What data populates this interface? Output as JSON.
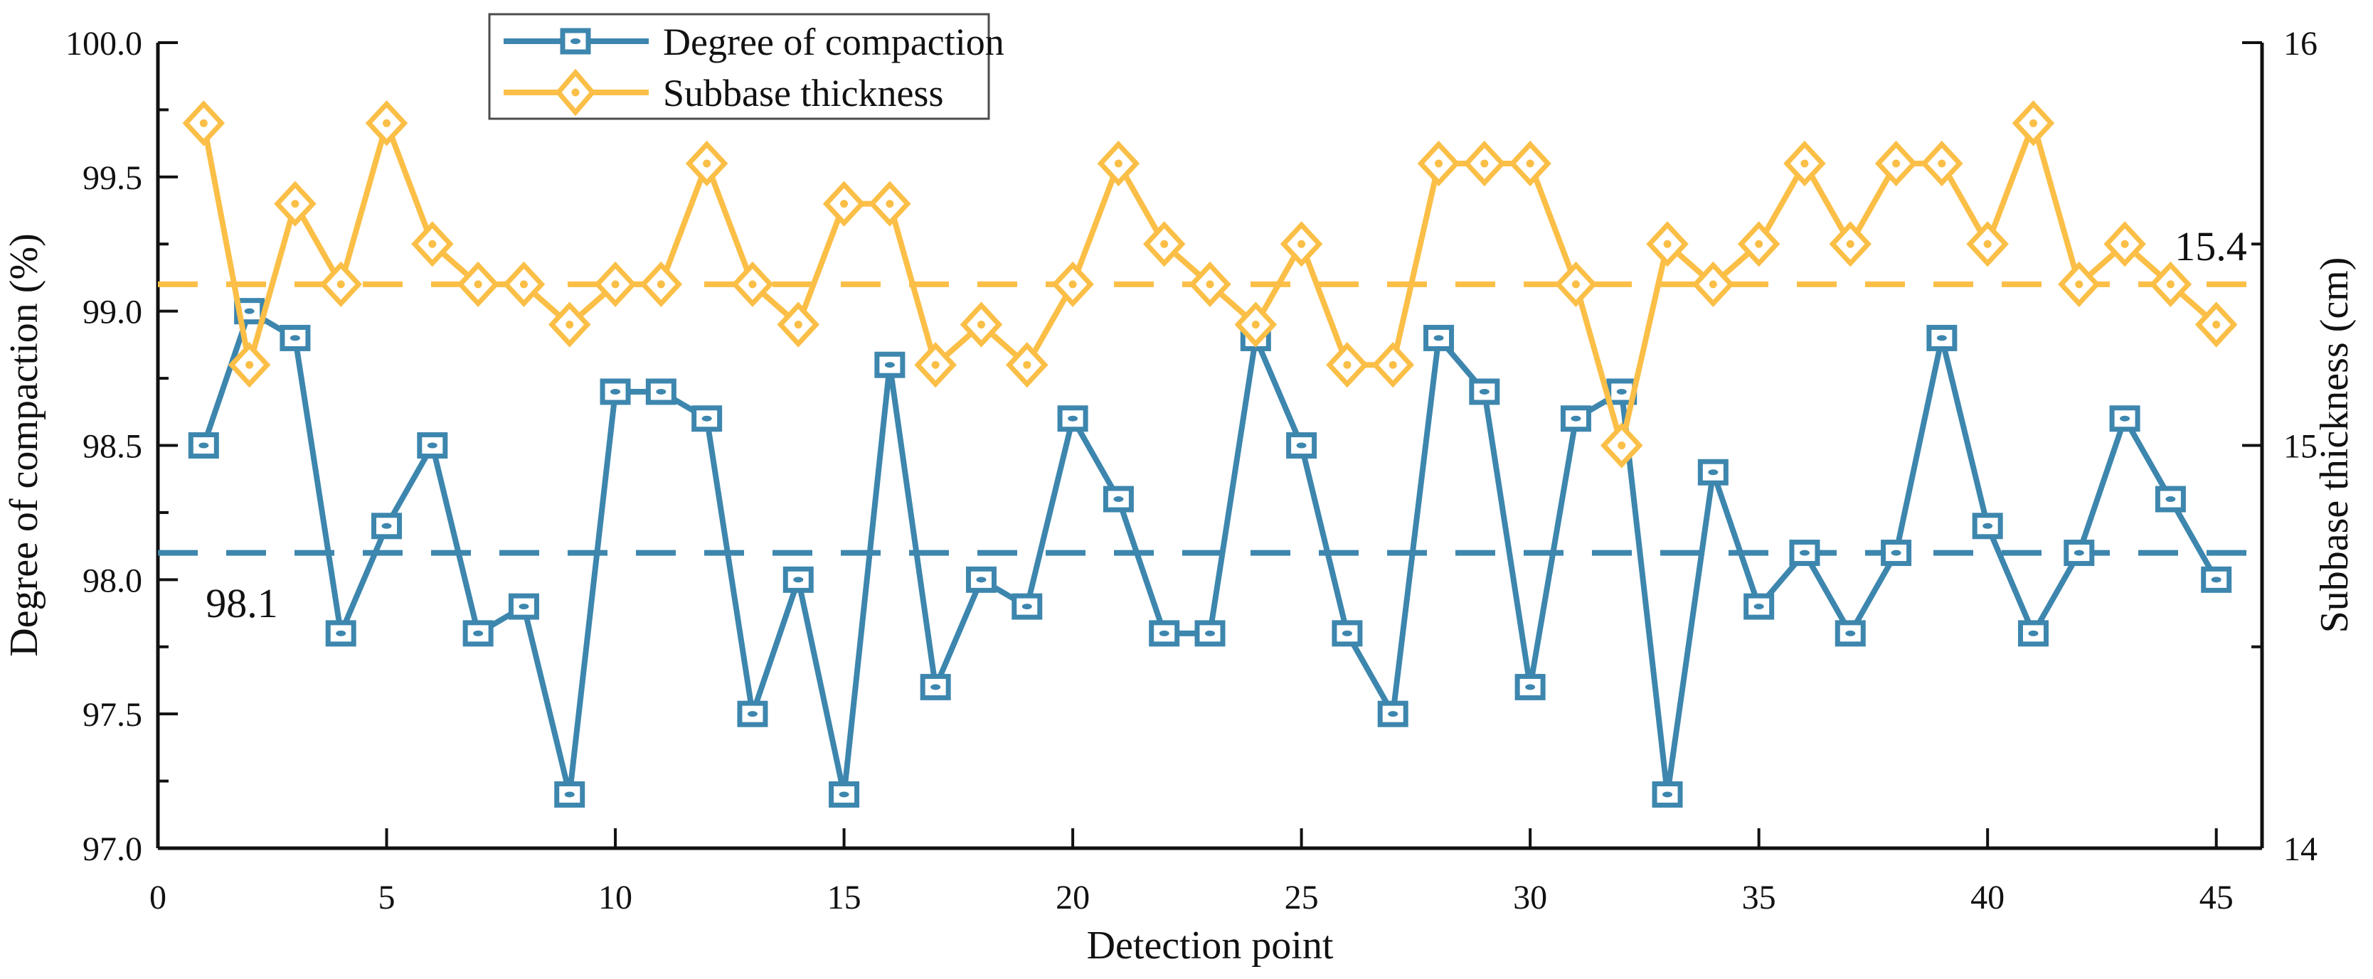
{
  "chart_data": {
    "type": "line",
    "title": "",
    "xlabel": "Detection point",
    "ylabel_left": "Degree of compaction (%)",
    "ylabel_right": "Subbase thickness (cm)",
    "x": [
      1,
      2,
      3,
      4,
      5,
      6,
      7,
      8,
      9,
      10,
      11,
      12,
      13,
      14,
      15,
      16,
      17,
      18,
      19,
      20,
      21,
      22,
      23,
      24,
      25,
      26,
      27,
      28,
      29,
      30,
      31,
      32,
      33,
      34,
      35,
      36,
      37,
      38,
      39,
      40,
      41,
      42,
      43,
      44,
      45
    ],
    "series": [
      {
        "name": "Degree of compaction",
        "axis": "left",
        "marker": "square",
        "color": "#3d86ae",
        "values": [
          98.5,
          99.0,
          98.9,
          97.8,
          98.2,
          98.5,
          97.8,
          97.9,
          97.2,
          98.7,
          98.7,
          98.6,
          97.5,
          98.0,
          97.2,
          98.8,
          97.6,
          98.0,
          97.9,
          98.6,
          98.3,
          97.8,
          97.8,
          98.9,
          98.5,
          97.8,
          97.5,
          98.9,
          98.7,
          97.6,
          98.6,
          98.7,
          97.2,
          98.4,
          97.9,
          98.1,
          97.8,
          98.1,
          98.9,
          98.2,
          97.8,
          98.1,
          98.6,
          98.3,
          98.0
        ]
      },
      {
        "name": "Subbase thickness",
        "axis": "right",
        "marker": "diamond",
        "color": "#fbbf47",
        "values": [
          15.8,
          15.2,
          15.6,
          15.4,
          15.8,
          15.5,
          15.4,
          15.4,
          15.3,
          15.4,
          15.4,
          15.7,
          15.4,
          15.3,
          15.6,
          15.6,
          15.2,
          15.3,
          15.2,
          15.4,
          15.7,
          15.5,
          15.4,
          15.3,
          15.5,
          15.2,
          15.2,
          15.7,
          15.7,
          15.7,
          15.4,
          15.0,
          15.5,
          15.4,
          15.5,
          15.7,
          15.5,
          15.7,
          15.7,
          15.5,
          15.8,
          15.4,
          15.5,
          15.4,
          15.3
        ]
      }
    ],
    "reference_lines": [
      {
        "axis": "left",
        "value": 98.1,
        "label": "98.1",
        "color": "#3d86ae",
        "style": "dashed"
      },
      {
        "axis": "right",
        "value": 15.4,
        "label": "15.4",
        "color": "#fbbf47",
        "style": "dashed"
      }
    ],
    "axes": {
      "x": {
        "min": 0,
        "max": 46,
        "tick_values": [
          0,
          5,
          10,
          15,
          20,
          25,
          30,
          35,
          40,
          45
        ],
        "tick_labels": [
          "0",
          "5",
          "10",
          "15",
          "20",
          "25",
          "30",
          "35",
          "40",
          "45"
        ]
      },
      "left": {
        "min": 97,
        "max": 100,
        "major_step": 0.5,
        "minor_step": 0.25,
        "tick_labels": [
          "97.0",
          "97.5",
          "98.0",
          "98.5",
          "99.0",
          "99.5",
          "100.0"
        ]
      },
      "right": {
        "min": 14,
        "max": 16,
        "major_step": 1,
        "minor_step": 0.5,
        "tick_labels": [
          "14",
          "15",
          "16"
        ]
      }
    },
    "legend": {
      "position": "top-left-of-plot",
      "entries": [
        "Degree of compaction",
        "Subbase thickness"
      ]
    },
    "grid": false
  }
}
